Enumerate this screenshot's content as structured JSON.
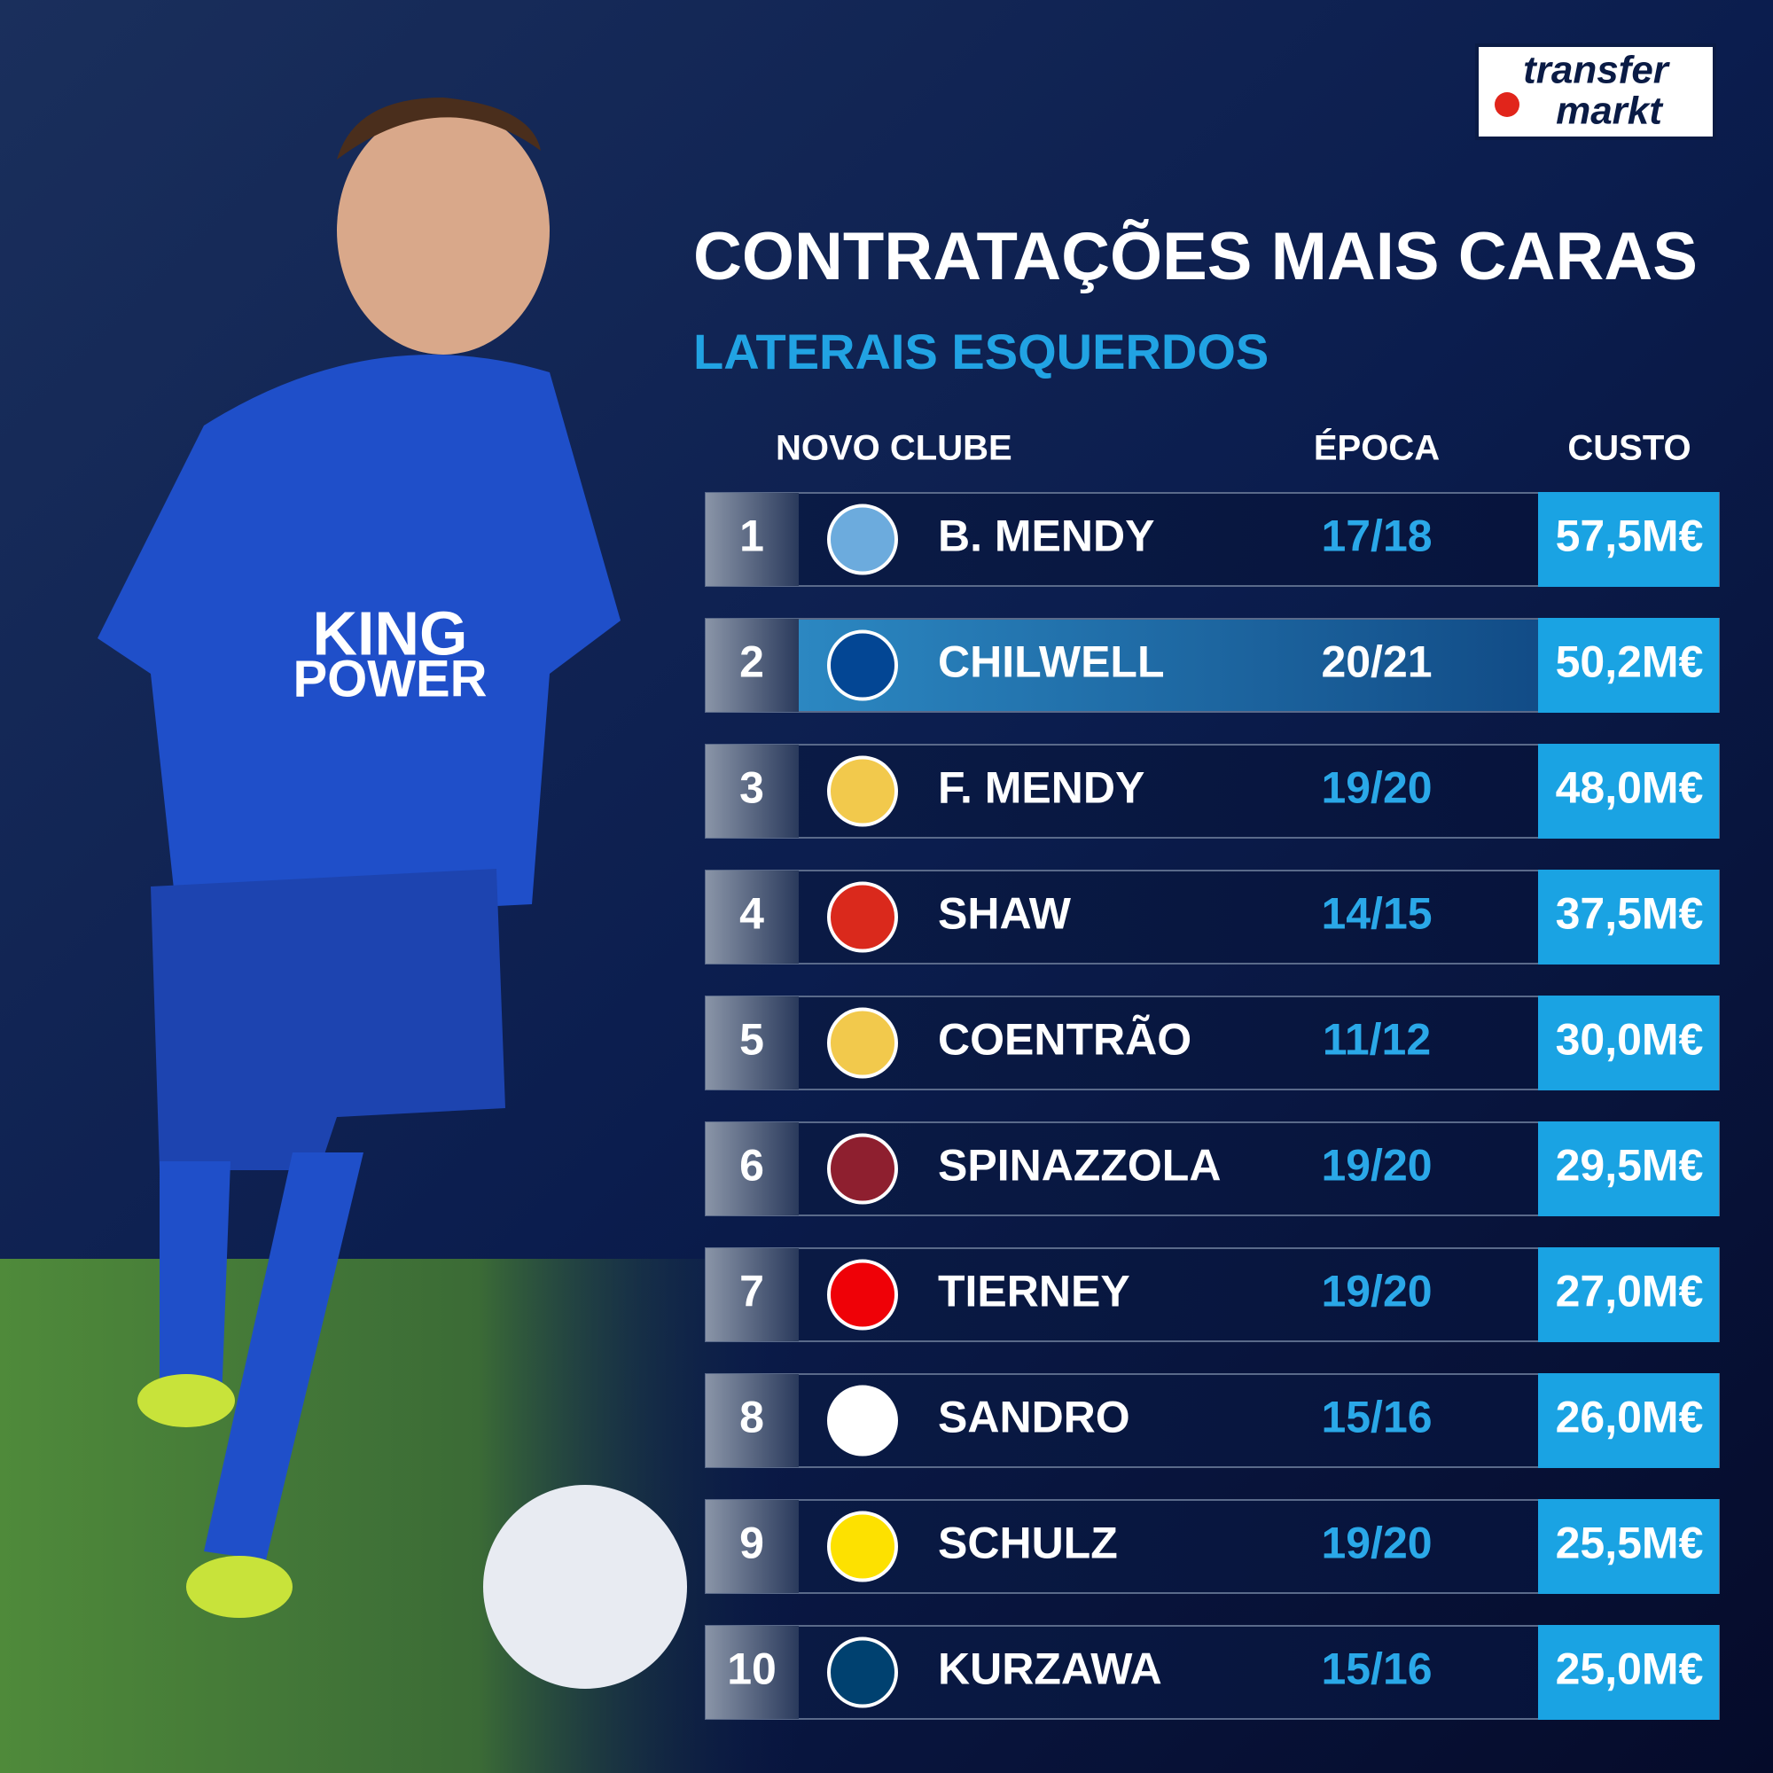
{
  "logo": {
    "line1": "transfer",
    "line2": "markt"
  },
  "header": {
    "title": "CONTRATAÇÕES MAIS CARAS",
    "subtitle": "LATERAIS ESQUERDOS"
  },
  "table": {
    "columns": [
      "NOVO CLUBE",
      "ÉPOCA",
      "CUSTO"
    ],
    "rows": [
      [
        1,
        "B. MENDY",
        "17/18",
        "57,5M€"
      ],
      [
        2,
        "CHILWELL",
        "20/21",
        "50,2M€"
      ],
      [
        3,
        "F. MENDY",
        "19/20",
        "48,0M€"
      ],
      [
        4,
        "SHAW",
        "14/15",
        "37,5M€"
      ],
      [
        5,
        "COENTRÃO",
        "11/12",
        "30,0M€"
      ],
      [
        6,
        "SPINAZZOLA",
        "19/20",
        "29,5M€"
      ],
      [
        7,
        "TIERNEY",
        "19/20",
        "27,0M€"
      ],
      [
        8,
        "SANDRO",
        "15/16",
        "26,0M€"
      ],
      [
        9,
        "SCHULZ",
        "19/20",
        "25,5M€"
      ],
      [
        10,
        "KURZAWA",
        "15/16",
        "25,0M€"
      ]
    ]
  }
}
